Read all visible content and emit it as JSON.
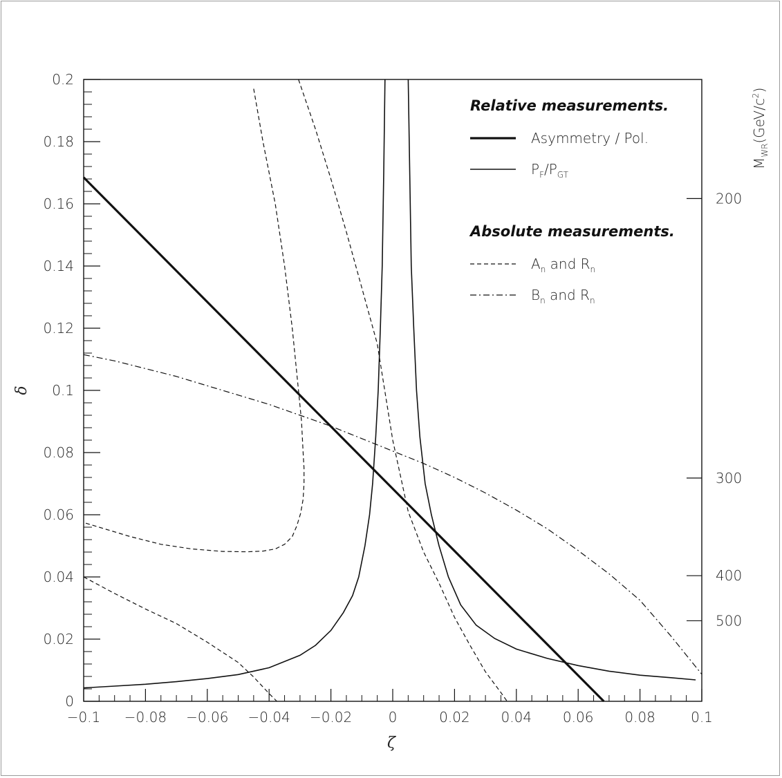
{
  "chart_data": {
    "type": "line",
    "xlabel": "ζ",
    "ylabel": "δ",
    "xlim": [
      -0.1,
      0.1
    ],
    "ylim": [
      0,
      0.2
    ],
    "x_ticks": [
      "−0.1",
      "−0.08",
      "−0.06",
      "−0.04",
      "−0.02",
      "0",
      "0.02",
      "0.04",
      "0.06",
      "0.08",
      "0.1"
    ],
    "y_ticks": [
      "0",
      "0.02",
      "0.04",
      "0.06",
      "0.08",
      "0.1",
      "0.12",
      "0.14",
      "0.16",
      "0.18",
      "0.2"
    ],
    "right_axis": {
      "label_main": "M",
      "label_sub": "WR",
      "label_rest": "(GeV/c",
      "label_sup": "2",
      "label_close": ")",
      "ticks": [
        {
          "label": "200",
          "delta": 0.1617
        },
        {
          "label": "300",
          "delta": 0.0718
        },
        {
          "label": "400",
          "delta": 0.0404
        },
        {
          "label": "500",
          "delta": 0.0259
        }
      ]
    },
    "legend": {
      "relative_heading": "Relative measurements.",
      "absolute_heading": "Absolute measurements.",
      "entries": [
        {
          "main": "Asymmetry / Pol.",
          "style": "thick"
        },
        {
          "main": "P",
          "sub1": "F",
          "slash": "/P",
          "sub2": "GT",
          "style": "solid"
        },
        {
          "main": "A",
          "sub1": "n",
          "rest": " and R",
          "sub2": "n",
          "style": "dashed"
        },
        {
          "main": "B",
          "sub1": "n",
          "rest": " and R",
          "sub2": "n",
          "style": "dashdot"
        }
      ]
    },
    "series": [
      {
        "style": "thick",
        "x": [
          -0.1,
          0.0683
        ],
        "y": [
          0.1685,
          0
        ]
      },
      {
        "style": "solid",
        "segments": [
          {
            "x": [
              -0.1,
              -0.09,
              -0.08,
              -0.07,
              -0.06,
              -0.05,
              -0.04,
              -0.03,
              -0.025,
              -0.02,
              -0.016,
              -0.013,
              -0.011,
              -0.009,
              -0.0075,
              -0.0065,
              -0.0055,
              -0.0047,
              -0.004,
              -0.0034,
              -0.0029,
              -0.0025
            ],
            "y": [
              0.0043,
              0.0049,
              0.0055,
              0.0063,
              0.0073,
              0.0086,
              0.0108,
              0.0148,
              0.018,
              0.0228,
              0.0285,
              0.034,
              0.04,
              0.05,
              0.06,
              0.07,
              0.085,
              0.1,
              0.12,
              0.14,
              0.17,
              0.2
            ]
          },
          {
            "x": [
              0.005,
              0.0055,
              0.006,
              0.0068,
              0.0077,
              0.0088,
              0.0105,
              0.0125,
              0.015,
              0.018,
              0.022,
              0.027,
              0.033,
              0.04,
              0.05,
              0.06,
              0.07,
              0.08,
              0.09,
              0.098
            ],
            "y": [
              0.2,
              0.17,
              0.14,
              0.12,
              0.1,
              0.085,
              0.07,
              0.06,
              0.05,
              0.04,
              0.031,
              0.0245,
              0.0202,
              0.0168,
              0.0138,
              0.0115,
              0.0097,
              0.0084,
              0.0076,
              0.0069
            ]
          }
        ]
      },
      {
        "style": "dashed",
        "segments": [
          {
            "x": [
              -0.045,
              -0.042,
              -0.038,
              -0.035,
              -0.0325,
              -0.0305,
              -0.0295,
              -0.029,
              -0.0287,
              -0.0287,
              -0.029,
              -0.0298,
              -0.031,
              -0.0325,
              -0.035,
              -0.038,
              -0.042,
              -0.047,
              -0.055,
              -0.065,
              -0.075,
              -0.085,
              -0.1
            ],
            "y": [
              0.197,
              0.18,
              0.16,
              0.14,
              0.12,
              0.1,
              0.09,
              0.08,
              0.075,
              0.07,
              0.065,
              0.0605,
              0.0565,
              0.053,
              0.0505,
              0.049,
              0.0483,
              0.0481,
              0.0482,
              0.049,
              0.0505,
              0.053,
              0.0575
            ]
          },
          {
            "x": [
              -0.1,
              -0.09,
              -0.08,
              -0.07,
              -0.06,
              -0.05,
              -0.045,
              -0.04,
              -0.0375
            ],
            "y": [
              0.04,
              0.0347,
              0.0297,
              0.025,
              0.019,
              0.0125,
              0.0078,
              0.0025,
              0
            ]
          },
          {
            "x": [
              -0.0305,
              -0.025,
              -0.02,
              -0.015,
              -0.01,
              -0.005,
              0,
              0.005,
              0.01,
              0.015,
              0.02,
              0.025,
              0.03,
              0.035,
              0.037
            ],
            "y": [
              0.2,
              0.184,
              0.168,
              0.151,
              0.133,
              0.115,
              0.084,
              0.061,
              0.048,
              0.038,
              0.027,
              0.018,
              0.0095,
              0.0028,
              0
            ]
          }
        ]
      },
      {
        "style": "dashdot",
        "x": [
          -0.1,
          -0.09,
          -0.08,
          -0.07,
          -0.06,
          -0.05,
          -0.04,
          -0.03,
          -0.02,
          -0.01,
          0,
          0.01,
          0.02,
          0.03,
          0.04,
          0.05,
          0.06,
          0.07,
          0.08,
          0.09,
          0.1
        ],
        "y": [
          0.1115,
          0.1095,
          0.107,
          0.1045,
          0.1015,
          0.0985,
          0.0955,
          0.092,
          0.0885,
          0.0845,
          0.0805,
          0.0765,
          0.072,
          0.067,
          0.0615,
          0.0555,
          0.0485,
          0.041,
          0.0325,
          0.021,
          0.0087
        ]
      }
    ]
  }
}
